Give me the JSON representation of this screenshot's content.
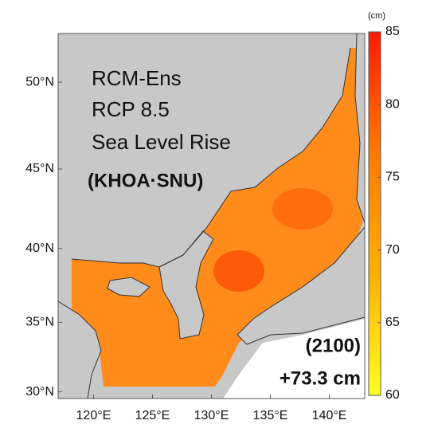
{
  "chart_data": {
    "type": "map",
    "annotations": [
      "RCM-Ens",
      "RCP 8.5",
      "Sea Level Rise",
      "(KHOA·SNU)",
      "(2100)",
      "+73.3 cm"
    ],
    "xlim": [
      117,
      143
    ],
    "ylim": [
      29.5,
      52.6
    ],
    "xticks": [
      {
        "value": 120,
        "label": "120°E"
      },
      {
        "value": 125,
        "label": "125°E"
      },
      {
        "value": 130,
        "label": "130°E"
      },
      {
        "value": 135,
        "label": "135°E"
      },
      {
        "value": 140,
        "label": "140°E"
      }
    ],
    "yticks": [
      {
        "value": 30,
        "label": "30°N"
      },
      {
        "value": 35,
        "label": "35°N"
      },
      {
        "value": 40,
        "label": "40°N"
      },
      {
        "value": 45,
        "label": "45°N"
      },
      {
        "value": 50,
        "label": "50°N"
      }
    ],
    "projection": "mercator",
    "colorbar": {
      "label": "(cm)",
      "lim": [
        60,
        85
      ],
      "ticks": [
        60,
        65,
        70,
        75,
        80,
        85
      ],
      "colors": [
        "#ffff20",
        "#ffb000",
        "#ff7a00",
        "#ff1a00"
      ]
    }
  }
}
